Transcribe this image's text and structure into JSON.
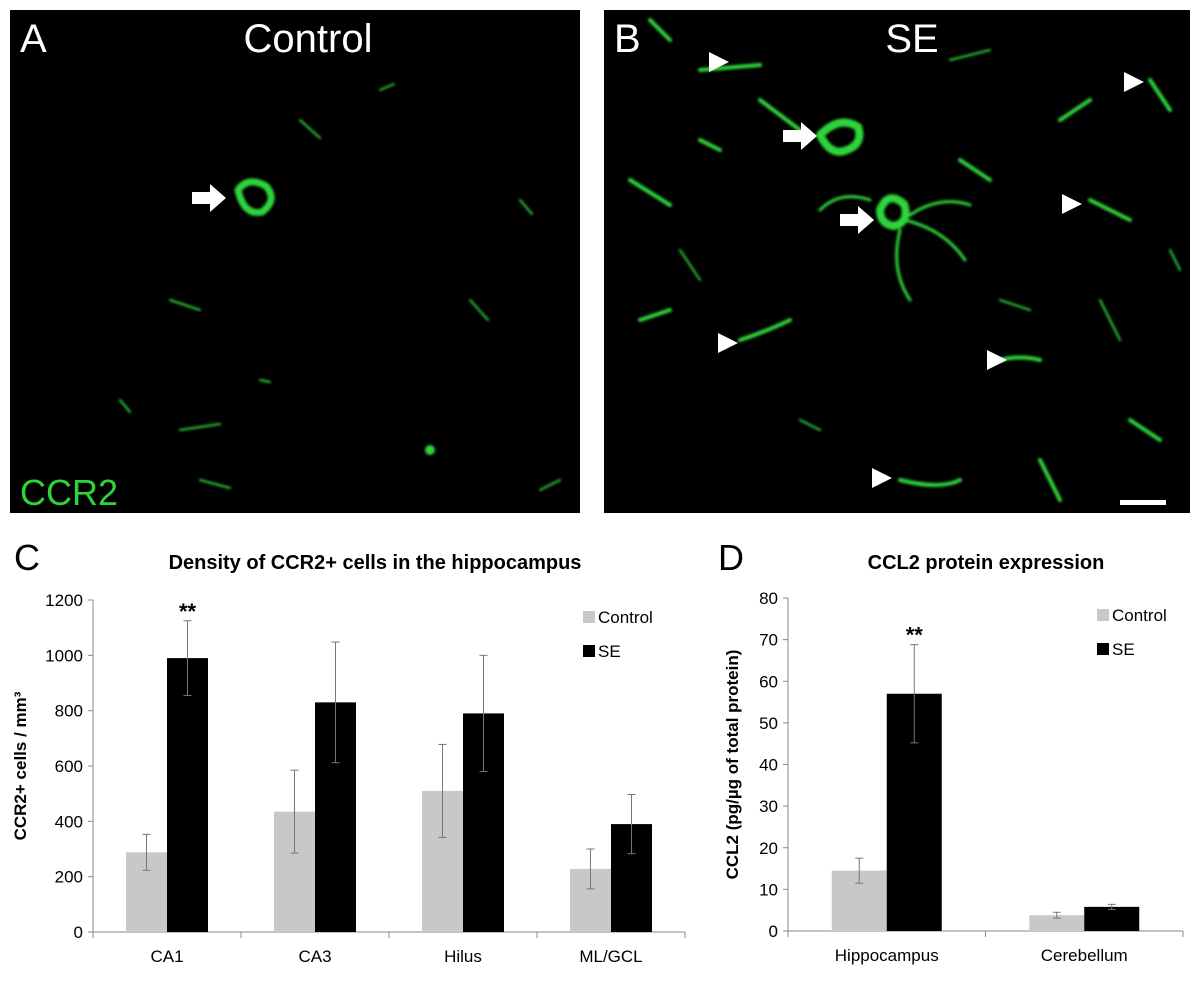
{
  "panels": [
    {
      "letter": "A",
      "title": "Control",
      "stain": "CCR2"
    },
    {
      "letter": "B",
      "title": "SE"
    }
  ],
  "chart_data": [
    {
      "type": "bar",
      "letter": "C",
      "title": "Density of CCR2+ cells in the hippocampus",
      "y_label": "CCR2+ cells / mm³",
      "categories": [
        "CA1",
        "CA3",
        "Hilus",
        "ML/GCL"
      ],
      "series": [
        {
          "name": "Control",
          "color": "#c8c8c8",
          "values": [
            288,
            435,
            510,
            228
          ],
          "errors": [
            65,
            150,
            168,
            72
          ]
        },
        {
          "name": "SE",
          "color": "#000000",
          "values": [
            990,
            830,
            790,
            390
          ],
          "errors": [
            135,
            218,
            210,
            107
          ]
        }
      ],
      "ylim": [
        0,
        1200
      ],
      "yticks": [
        0,
        200,
        400,
        600,
        800,
        1000,
        1200
      ],
      "grid": false,
      "legend": "upper right",
      "annotations": [
        {
          "text": "**",
          "category": "CA1",
          "series": "SE"
        }
      ]
    },
    {
      "type": "bar",
      "letter": "D",
      "title": "CCL2 protein expression",
      "y_label": "CCL2 (pg/µg of total protein)",
      "categories": [
        "Hippocampus",
        "Cerebellum"
      ],
      "series": [
        {
          "name": "Control",
          "color": "#c8c8c8",
          "values": [
            14.5,
            3.8
          ],
          "errors": [
            3,
            0.7
          ]
        },
        {
          "name": "SE",
          "color": "#000000",
          "values": [
            57,
            5.8
          ],
          "errors": [
            11.8,
            0.6
          ]
        }
      ],
      "ylim": [
        0,
        80
      ],
      "yticks": [
        0,
        10,
        20,
        30,
        40,
        50,
        60,
        70,
        80
      ],
      "grid": false,
      "legend": "upper right",
      "annotations": [
        {
          "text": "**",
          "category": "Hippocampus",
          "series": "SE"
        }
      ]
    }
  ]
}
